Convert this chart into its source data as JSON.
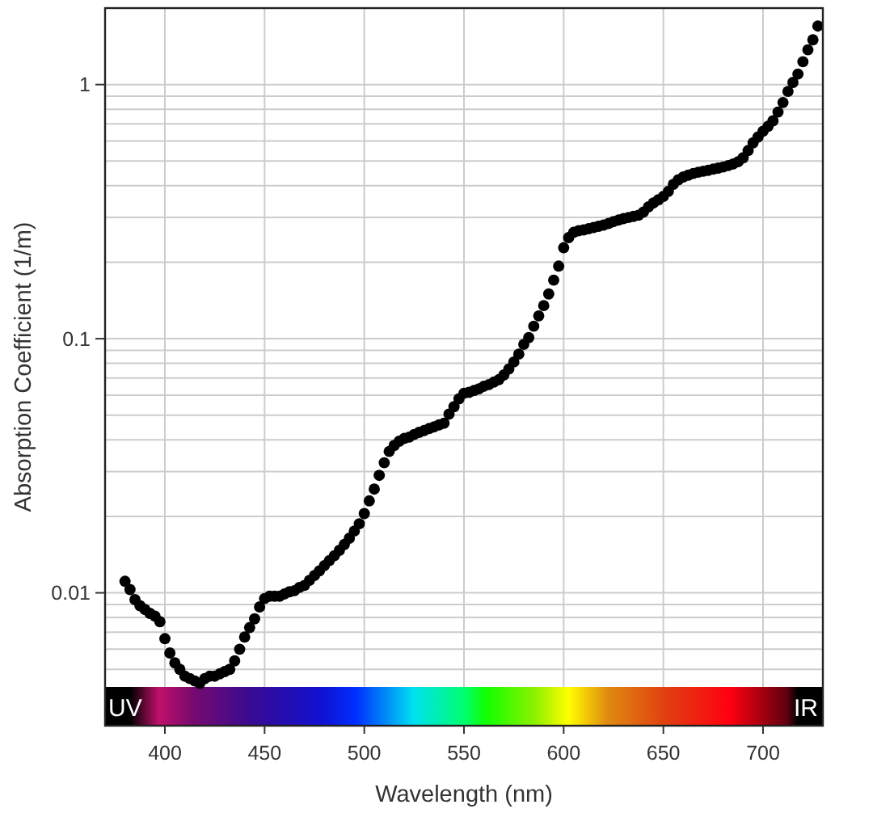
{
  "chart_data": {
    "type": "scatter",
    "xlabel": "Wavelength (nm)",
    "ylabel": "Absorption Coefficient (1/m)",
    "x": [
      380,
      382.5,
      385,
      387.5,
      390,
      392.5,
      395,
      397.5,
      400,
      402.5,
      405,
      407.5,
      410,
      412.5,
      415,
      417.5,
      420,
      422.5,
      425,
      427.5,
      430,
      432.5,
      435,
      437.5,
      440,
      442.5,
      445,
      447.5,
      450,
      452.5,
      455,
      457.5,
      460,
      462.5,
      465,
      467.5,
      470,
      472.5,
      475,
      477.5,
      480,
      482.5,
      485,
      487.5,
      490,
      492.5,
      495,
      497.5,
      500,
      502.5,
      505,
      507.5,
      510,
      512.5,
      515,
      517.5,
      520,
      522.5,
      525,
      527.5,
      530,
      532.5,
      535,
      537.5,
      540,
      542.5,
      545,
      547.5,
      550,
      552.5,
      555,
      557.5,
      560,
      562.5,
      565,
      567.5,
      570,
      572.5,
      575,
      577.5,
      580,
      582.5,
      585,
      587.5,
      590,
      592.5,
      595,
      597.5,
      600,
      602.5,
      605,
      607.5,
      610,
      612.5,
      615,
      617.5,
      620,
      622.5,
      625,
      627.5,
      630,
      632.5,
      635,
      637.5,
      640,
      642.5,
      645,
      647.5,
      650,
      652.5,
      655,
      657.5,
      660,
      662.5,
      665,
      667.5,
      670,
      672.5,
      675,
      677.5,
      680,
      682.5,
      685,
      687.5,
      690,
      692.5,
      695,
      697.5,
      700,
      702.5,
      705,
      707.5,
      710,
      712.5,
      715,
      717.5,
      720,
      722.5,
      725,
      727.5
    ],
    "values": [
      0.0111,
      0.0103,
      0.0094,
      0.0089,
      0.0086,
      0.0083,
      0.0081,
      0.0077,
      0.0066,
      0.0058,
      0.0053,
      0.005,
      0.0047,
      0.0046,
      0.0045,
      0.0044,
      0.0046,
      0.0047,
      0.0047,
      0.0048,
      0.0049,
      0.005,
      0.0054,
      0.006,
      0.0067,
      0.0073,
      0.0079,
      0.0088,
      0.0095,
      0.0097,
      0.0097,
      0.0097,
      0.0099,
      0.0101,
      0.0102,
      0.0105,
      0.0107,
      0.0112,
      0.0117,
      0.0122,
      0.0128,
      0.0134,
      0.014,
      0.0147,
      0.0155,
      0.0164,
      0.0175,
      0.0187,
      0.0205,
      0.023,
      0.0256,
      0.029,
      0.0325,
      0.036,
      0.038,
      0.0395,
      0.0405,
      0.041,
      0.042,
      0.0428,
      0.0435,
      0.0443,
      0.045,
      0.0458,
      0.0465,
      0.0505,
      0.054,
      0.058,
      0.061,
      0.0615,
      0.0625,
      0.0635,
      0.065,
      0.066,
      0.0675,
      0.069,
      0.072,
      0.076,
      0.081,
      0.087,
      0.095,
      0.101,
      0.112,
      0.123,
      0.135,
      0.15,
      0.17,
      0.193,
      0.228,
      0.25,
      0.262,
      0.266,
      0.268,
      0.271,
      0.274,
      0.277,
      0.28,
      0.284,
      0.289,
      0.293,
      0.297,
      0.3,
      0.303,
      0.306,
      0.315,
      0.33,
      0.342,
      0.352,
      0.363,
      0.38,
      0.405,
      0.422,
      0.433,
      0.44,
      0.447,
      0.452,
      0.456,
      0.46,
      0.465,
      0.469,
      0.474,
      0.48,
      0.487,
      0.497,
      0.515,
      0.55,
      0.59,
      0.622,
      0.655,
      0.685,
      0.72,
      0.78,
      0.85,
      0.94,
      1.02,
      1.1,
      1.23,
      1.37,
      1.5,
      1.7
    ],
    "color": "#000000",
    "marker": "circle",
    "xlim": [
      370,
      730
    ],
    "xticks": [
      400,
      450,
      500,
      550,
      600,
      650,
      700
    ],
    "ylim": [
      0.003,
      2
    ],
    "log": "y",
    "yticks": [
      {
        "value": 0.005,
        "label": null
      },
      {
        "value": 0.006,
        "label": null
      },
      {
        "value": 0.007,
        "label": null
      },
      {
        "value": 0.008,
        "label": null
      },
      {
        "value": 0.009,
        "label": null
      },
      0.01,
      {
        "value": 0.02,
        "label": null
      },
      {
        "value": 0.03,
        "label": null
      },
      {
        "value": 0.04,
        "label": null
      },
      {
        "value": 0.05,
        "label": null
      },
      {
        "value": 0.06,
        "label": null
      },
      {
        "value": 0.07,
        "label": null
      },
      {
        "value": 0.08,
        "label": null
      },
      {
        "value": 0.09,
        "label": null
      },
      0.1,
      {
        "value": 0.2,
        "label": null
      },
      {
        "value": 0.3,
        "label": null
      },
      {
        "value": 0.4,
        "label": null
      },
      {
        "value": 0.5,
        "label": null
      },
      {
        "value": 0.6,
        "label": null
      },
      {
        "value": 0.7,
        "label": null
      },
      {
        "value": 0.8,
        "label": null
      },
      {
        "value": 0.9,
        "label": null
      },
      1
    ],
    "grid": true,
    "annotations": [
      "UV",
      "IR"
    ]
  }
}
